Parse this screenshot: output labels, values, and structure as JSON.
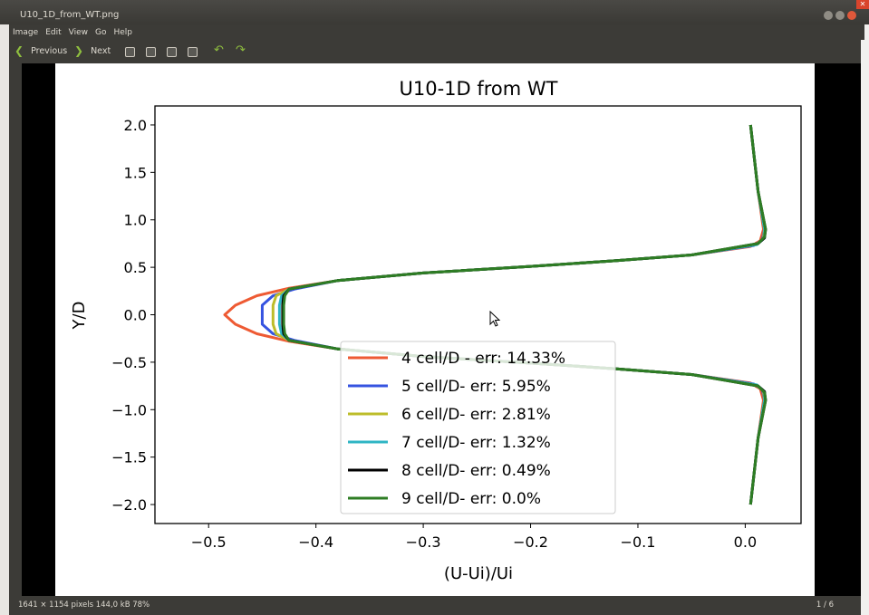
{
  "window": {
    "title": "U10_1D_from_WT.png"
  },
  "menu": [
    "Image",
    "Edit",
    "View",
    "Go",
    "Help"
  ],
  "toolbar": {
    "previous_label": "Previous",
    "next_label": "Next"
  },
  "status": {
    "info": "1641 × 1154 pixels  144,0 kB   78%",
    "page": "1 / 6"
  },
  "chart_data": {
    "type": "line",
    "title": "U10-1D from WT",
    "xlabel": "(U-Ui)/Ui",
    "ylabel": "Y/D",
    "xlim": [
      -0.55,
      0.052
    ],
    "ylim": [
      -2.2,
      2.2
    ],
    "xticks": [
      -0.5,
      -0.4,
      -0.3,
      -0.2,
      -0.1,
      0.0
    ],
    "xtick_labels": [
      "−0.5",
      "−0.4",
      "−0.3",
      "−0.2",
      "−0.1",
      "0.0"
    ],
    "yticks": [
      2.0,
      1.5,
      1.0,
      0.5,
      0.0,
      -0.5,
      -1.0,
      -1.5,
      -2.0
    ],
    "ytick_labels": [
      "2.0",
      "1.5",
      "1.0",
      "0.5",
      "0.0",
      "−0.5",
      "−1.0",
      "−1.5",
      "−2.0"
    ],
    "legend_position": "lower-center",
    "series": [
      {
        "name": "4 cell/D - err: 14.33%",
        "color": "#ee5a33",
        "x": [
          0.005,
          0.012,
          0.017,
          0.014,
          0.005,
          -0.05,
          -0.12,
          -0.2,
          -0.3,
          -0.38,
          -0.425,
          -0.455,
          -0.475,
          -0.485,
          -0.475,
          -0.455,
          -0.425,
          -0.38,
          -0.3,
          -0.2,
          -0.12,
          -0.05,
          0.005,
          0.014,
          0.017,
          0.012,
          0.005
        ],
        "y": [
          2.0,
          1.3,
          0.9,
          0.78,
          0.72,
          0.63,
          0.57,
          0.51,
          0.44,
          0.36,
          0.28,
          0.2,
          0.1,
          0.0,
          -0.1,
          -0.2,
          -0.28,
          -0.36,
          -0.44,
          -0.51,
          -0.57,
          -0.63,
          -0.72,
          -0.78,
          -0.9,
          -1.3,
          -2.0
        ]
      },
      {
        "name": "5 cell/D- err: 5.95%",
        "color": "#3553e0",
        "x": [
          0.005,
          0.012,
          0.018,
          0.016,
          0.008,
          -0.05,
          -0.12,
          -0.2,
          -0.3,
          -0.38,
          -0.42,
          -0.44,
          -0.45,
          -0.45,
          -0.45,
          -0.44,
          -0.42,
          -0.38,
          -0.3,
          -0.2,
          -0.12,
          -0.05,
          0.008,
          0.016,
          0.018,
          0.012,
          0.005
        ],
        "y": [
          2.0,
          1.3,
          0.9,
          0.79,
          0.73,
          0.63,
          0.57,
          0.51,
          0.44,
          0.36,
          0.27,
          0.2,
          0.1,
          0.0,
          -0.1,
          -0.2,
          -0.27,
          -0.36,
          -0.44,
          -0.51,
          -0.57,
          -0.63,
          -0.73,
          -0.79,
          -0.9,
          -1.3,
          -2.0
        ]
      },
      {
        "name": "6 cell/D- err: 2.81%",
        "color": "#bdbd2a",
        "x": [
          0.005,
          0.012,
          0.018,
          0.017,
          0.01,
          -0.05,
          -0.12,
          -0.2,
          -0.3,
          -0.38,
          -0.425,
          -0.437,
          -0.44,
          -0.44,
          -0.44,
          -0.437,
          -0.425,
          -0.38,
          -0.3,
          -0.2,
          -0.12,
          -0.05,
          0.01,
          0.017,
          0.018,
          0.012,
          0.005
        ],
        "y": [
          2.0,
          1.3,
          0.9,
          0.8,
          0.74,
          0.63,
          0.57,
          0.51,
          0.44,
          0.36,
          0.27,
          0.2,
          0.1,
          0.0,
          -0.1,
          -0.2,
          -0.27,
          -0.36,
          -0.44,
          -0.51,
          -0.57,
          -0.63,
          -0.74,
          -0.8,
          -0.9,
          -1.3,
          -2.0
        ]
      },
      {
        "name": "7 cell/D- err: 1.32%",
        "color": "#2fb5c4",
        "x": [
          0.005,
          0.012,
          0.018,
          0.018,
          0.011,
          -0.05,
          -0.12,
          -0.2,
          -0.3,
          -0.38,
          -0.425,
          -0.432,
          -0.434,
          -0.434,
          -0.434,
          -0.432,
          -0.425,
          -0.38,
          -0.3,
          -0.2,
          -0.12,
          -0.05,
          0.011,
          0.018,
          0.018,
          0.012,
          0.005
        ],
        "y": [
          2.0,
          1.3,
          0.9,
          0.81,
          0.74,
          0.63,
          0.57,
          0.51,
          0.44,
          0.36,
          0.27,
          0.2,
          0.1,
          0.0,
          -0.1,
          -0.2,
          -0.27,
          -0.36,
          -0.44,
          -0.51,
          -0.57,
          -0.63,
          -0.74,
          -0.81,
          -0.9,
          -1.3,
          -2.0
        ]
      },
      {
        "name": "8 cell/D- err: 0.49%",
        "color": "#000000",
        "x": [
          0.005,
          0.012,
          0.019,
          0.018,
          0.012,
          -0.05,
          -0.12,
          -0.2,
          -0.3,
          -0.38,
          -0.425,
          -0.43,
          -0.431,
          -0.431,
          -0.431,
          -0.43,
          -0.425,
          -0.38,
          -0.3,
          -0.2,
          -0.12,
          -0.05,
          0.012,
          0.018,
          0.019,
          0.012,
          0.005
        ],
        "y": [
          2.0,
          1.3,
          0.9,
          0.81,
          0.75,
          0.63,
          0.57,
          0.51,
          0.44,
          0.36,
          0.27,
          0.2,
          0.1,
          0.0,
          -0.1,
          -0.2,
          -0.27,
          -0.36,
          -0.44,
          -0.51,
          -0.57,
          -0.63,
          -0.75,
          -0.81,
          -0.9,
          -1.3,
          -2.0
        ]
      },
      {
        "name": "9 cell/D- err: 0.0%",
        "color": "#2e7d24",
        "x": [
          0.005,
          0.012,
          0.019,
          0.018,
          0.012,
          -0.05,
          -0.12,
          -0.2,
          -0.3,
          -0.38,
          -0.425,
          -0.429,
          -0.43,
          -0.43,
          -0.43,
          -0.429,
          -0.425,
          -0.38,
          -0.3,
          -0.2,
          -0.12,
          -0.05,
          0.012,
          0.018,
          0.019,
          0.012,
          0.005
        ],
        "y": [
          2.0,
          1.3,
          0.9,
          0.82,
          0.75,
          0.63,
          0.57,
          0.51,
          0.44,
          0.36,
          0.27,
          0.2,
          0.1,
          0.0,
          -0.1,
          -0.2,
          -0.27,
          -0.36,
          -0.44,
          -0.51,
          -0.57,
          -0.63,
          -0.75,
          -0.82,
          -0.9,
          -1.3,
          -2.0
        ]
      }
    ]
  }
}
